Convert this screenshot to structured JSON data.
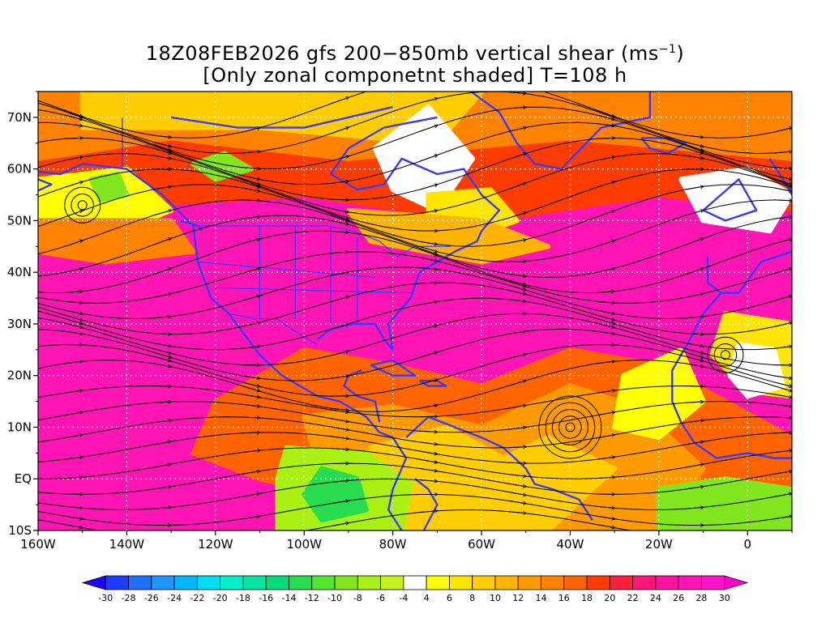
{
  "title": {
    "line1_prefix": "18Z08FEB2026 gfs 200−850mb vertical shear (ms",
    "line1_superscript": "−1",
    "line1_suffix": ")",
    "line2": "[Only zonal componetnt shaded] T=108 h"
  },
  "map": {
    "lon_range": [
      -160,
      10
    ],
    "lat_range": [
      -10,
      75
    ],
    "lon_ticks": [
      {
        "value": -160,
        "label": "160W"
      },
      {
        "value": -140,
        "label": "140W"
      },
      {
        "value": -120,
        "label": "120W"
      },
      {
        "value": -100,
        "label": "100W"
      },
      {
        "value": -80,
        "label": "80W"
      },
      {
        "value": -60,
        "label": "60W"
      },
      {
        "value": -40,
        "label": "40W"
      },
      {
        "value": -20,
        "label": "20W"
      },
      {
        "value": 0,
        "label": "0"
      }
    ],
    "lat_ticks": [
      {
        "value": 70,
        "label": "70N"
      },
      {
        "value": 60,
        "label": "60N"
      },
      {
        "value": 50,
        "label": "50N"
      },
      {
        "value": 40,
        "label": "40N"
      },
      {
        "value": 30,
        "label": "30N"
      },
      {
        "value": 20,
        "label": "20N"
      },
      {
        "value": 10,
        "label": "10N"
      },
      {
        "value": 0,
        "label": "EQ"
      },
      {
        "value": -10,
        "label": "10S"
      }
    ],
    "coastline_color": "#3a3aff",
    "streamline_color": "#000000",
    "gridline_color": "#ffffff"
  },
  "colorbar": {
    "levels": [
      -30,
      -28,
      -26,
      -24,
      -22,
      -20,
      -18,
      -16,
      -14,
      -12,
      -10,
      -8,
      -6,
      -4,
      4,
      6,
      8,
      10,
      12,
      14,
      16,
      18,
      20,
      22,
      24,
      26,
      28,
      30
    ],
    "colors": [
      "#1e00ff",
      "#1e3cff",
      "#1e6eff",
      "#1e96ff",
      "#00b4ff",
      "#00dcf0",
      "#00f0c8",
      "#00e6a0",
      "#00dc78",
      "#28dc50",
      "#50e632",
      "#82e61e",
      "#aaf014",
      "#c8f01e",
      "#ffffff",
      "#ffff00",
      "#ffe600",
      "#ffcd00",
      "#ffb400",
      "#ff9b00",
      "#ff8200",
      "#ff6400",
      "#ff3c00",
      "#ff1e3c",
      "#ff1478",
      "#ff14a0",
      "#ff14b4",
      "#ff14c8",
      "#ff00cc"
    ],
    "labels": [
      "-30",
      "-28",
      "-26",
      "-24",
      "-22",
      "-20",
      "-18",
      "-16",
      "-14",
      "-12",
      "-10",
      "-8",
      "-6",
      "-4",
      "4",
      "6",
      "8",
      "10",
      "12",
      "14",
      "16",
      "18",
      "20",
      "22",
      "24",
      "26",
      "28",
      "30"
    ]
  }
}
